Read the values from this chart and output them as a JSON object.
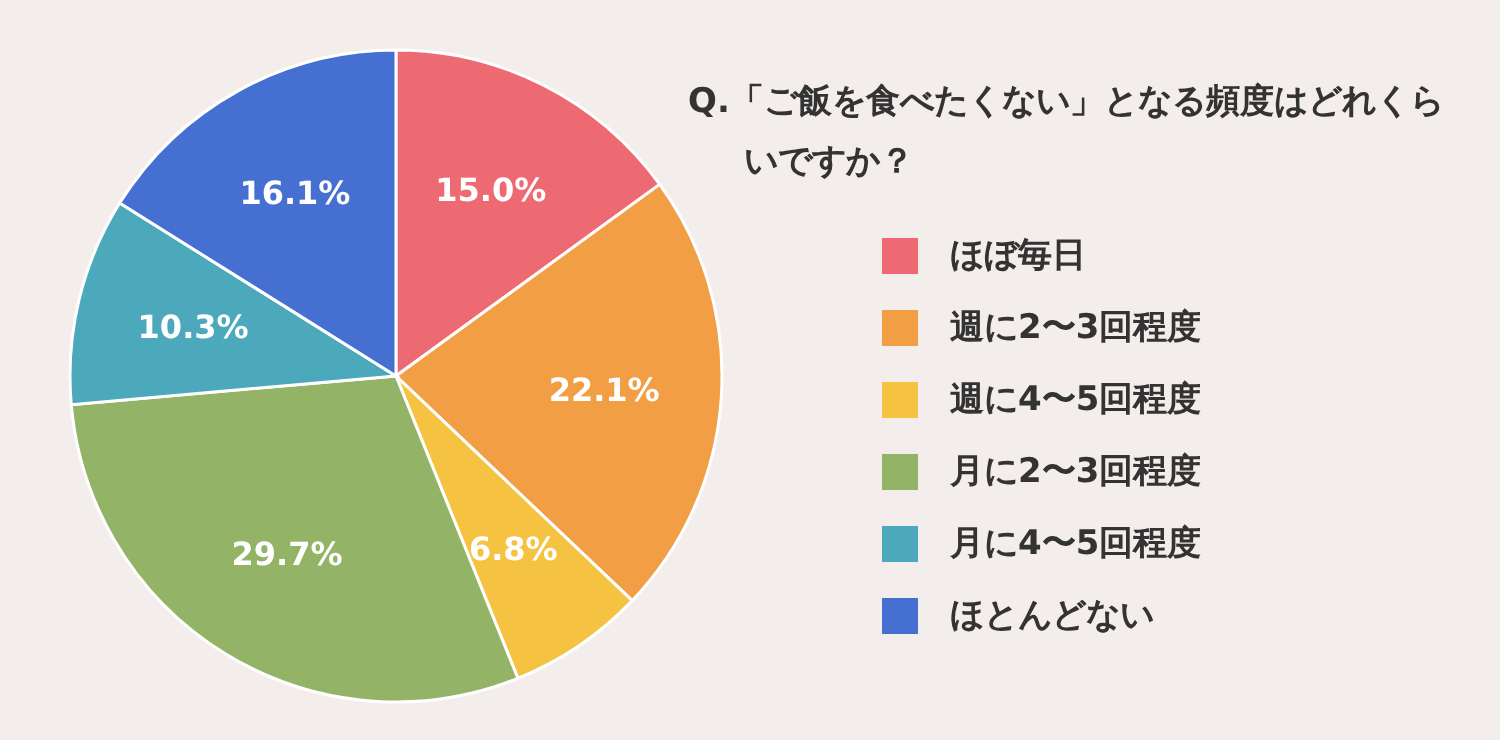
{
  "chart_data": {
    "type": "pie",
    "title": "Q.「ご飯を食べたくない」となる頻度はどれくらいですか？",
    "categories": [
      "ほぼ毎日",
      "週に2〜3回程度",
      "週に4〜5回程度",
      "月に2〜3回程度",
      "月に4〜5回程度",
      "ほとんどない"
    ],
    "values": [
      15.0,
      22.1,
      6.8,
      29.7,
      10.3,
      16.1
    ],
    "value_labels": [
      "15.0%",
      "22.1%",
      "6.8%",
      "29.7%",
      "10.3%",
      "16.1%"
    ],
    "colors": [
      "#ee6a73",
      "#f19e45",
      "#f5c242",
      "#93b466",
      "#4ba9bb",
      "#4570d2"
    ],
    "legend": "right"
  }
}
